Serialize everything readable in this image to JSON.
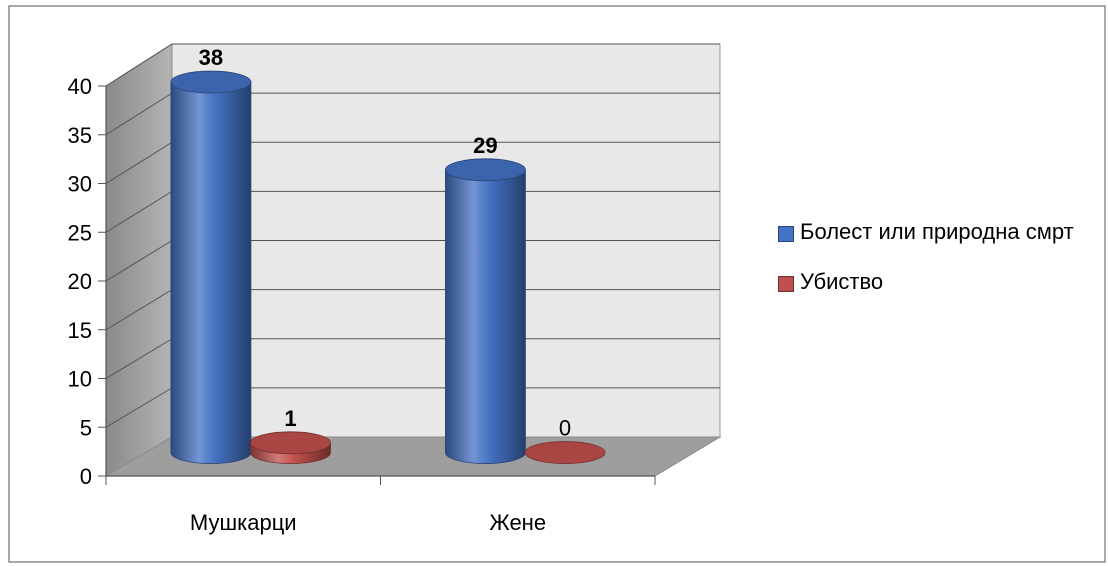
{
  "chart_data": {
    "type": "bar",
    "categories": [
      "Мушкарци",
      "Жене"
    ],
    "series": [
      {
        "name": "Болест или природна смрт",
        "values": [
          38,
          29
        ],
        "color": "#4472c4"
      },
      {
        "name": "Убиство",
        "values": [
          1,
          0
        ],
        "color": "#c0504d"
      }
    ],
    "data_labels": [
      [
        "38",
        "29"
      ],
      [
        "1",
        "0"
      ]
    ],
    "ylim": [
      0,
      40
    ],
    "yticks": [
      0,
      5,
      10,
      15,
      20,
      25,
      30,
      35,
      40
    ],
    "title": "",
    "xlabel": "",
    "ylabel": "",
    "grid": true,
    "legend_position": "right",
    "style": "3d-cylinder"
  }
}
